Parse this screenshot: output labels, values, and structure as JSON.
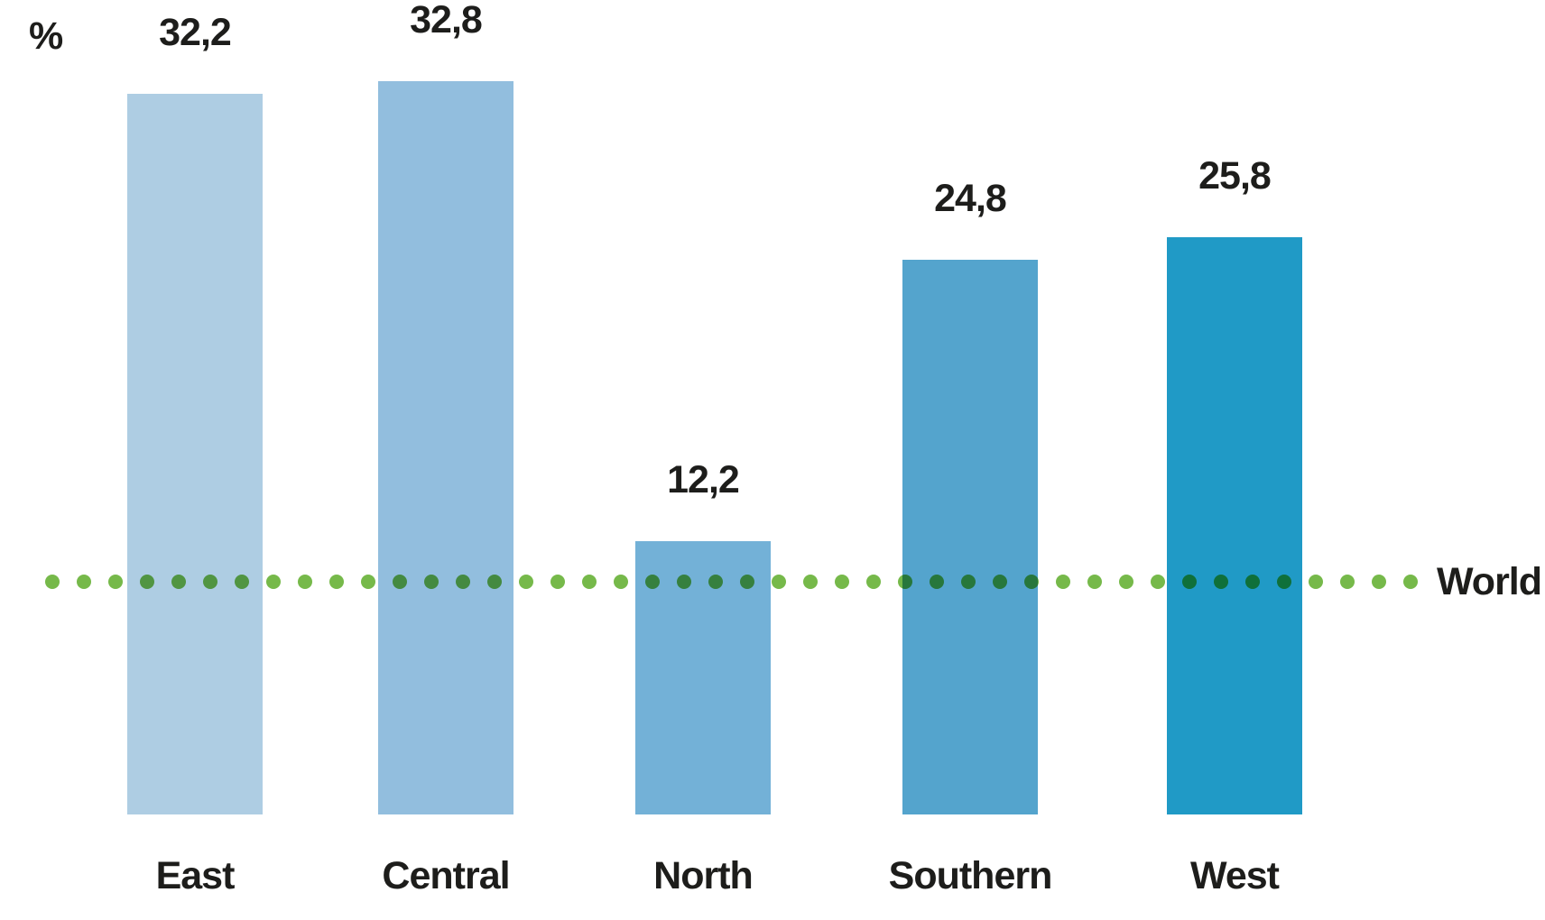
{
  "chart_data": {
    "type": "bar",
    "ylabel": "%",
    "categories": [
      "East",
      "Central",
      "North",
      "Southern",
      "West"
    ],
    "values": [
      32.2,
      32.8,
      12.2,
      24.8,
      25.8
    ],
    "value_labels": [
      "32,2",
      "32,8",
      "12,2",
      "24,8",
      "25,8"
    ],
    "bar_colors": [
      "#AECDE3",
      "#92BEDE",
      "#73B1D7",
      "#54A4CD",
      "#209AC6"
    ],
    "reference_line": {
      "label": "World",
      "value": 10.4,
      "style": "dotted",
      "color": "#76B94A",
      "position": "horizontal"
    },
    "ylim": [
      0,
      35
    ],
    "grid": false,
    "legend": false,
    "text_color": "#1d1d1b",
    "decimal_separator": ","
  }
}
